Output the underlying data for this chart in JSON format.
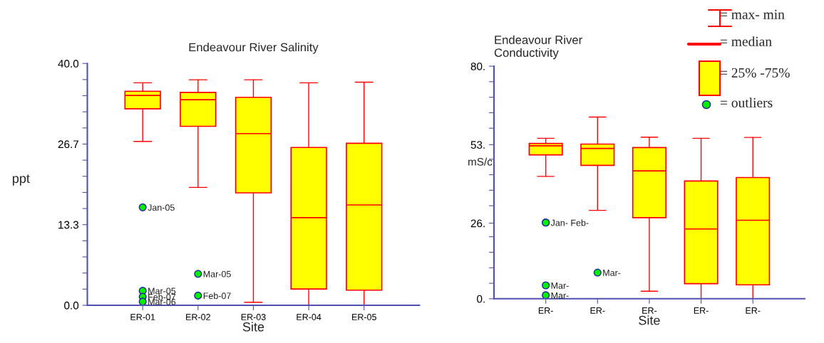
{
  "chart_data": [
    {
      "type": "box",
      "title": "Endeavour River Salinity",
      "xlabel": "Site",
      "ylabel": "ppt",
      "categories": [
        "ER-01",
        "ER-02",
        "ER-03",
        "ER-04",
        "ER-05"
      ],
      "boxes": [
        {
          "low": 27.1,
          "q1": 32.5,
          "median": 34.7,
          "q3": 35.4,
          "high": 36.8,
          "outliers": [
            16.2,
            2.4,
            1.4,
            0.6
          ]
        },
        {
          "low": 19.5,
          "q1": 29.6,
          "median": 34.0,
          "q3": 35.2,
          "high": 37.3,
          "outliers": [
            5.2,
            1.6
          ]
        },
        {
          "low": 0.5,
          "q1": 18.6,
          "median": 28.4,
          "q3": 34.4,
          "high": 37.3
        },
        {
          "low": 0,
          "q1": 2.7,
          "median": 14.5,
          "q3": 26.1,
          "high": 36.8
        },
        {
          "low": 0,
          "q1": 2.5,
          "median": 16.6,
          "q3": 26.8,
          "high": 36.9
        }
      ],
      "ylim": [
        0,
        40
      ],
      "yticks": [
        {
          "value": 0,
          "label": "0.0"
        },
        {
          "value": 2.667,
          "label": null
        },
        {
          "value": 5.333,
          "label": null
        },
        {
          "value": 8,
          "label": null
        },
        {
          "value": 10.667,
          "label": null
        },
        {
          "value": 13.333,
          "label": "13.3"
        },
        {
          "value": 16,
          "label": null
        },
        {
          "value": 18.667,
          "label": null
        },
        {
          "value": 21.333,
          "label": null
        },
        {
          "value": 24,
          "label": null
        },
        {
          "value": 26.667,
          "label": "26.7"
        },
        {
          "value": 29.333,
          "label": null
        },
        {
          "value": 32,
          "label": null
        },
        {
          "value": 34.667,
          "label": null
        },
        {
          "value": 37.333,
          "label": null
        },
        {
          "value": 40,
          "label": "40.0"
        }
      ],
      "annotations": [
        "Jan-05",
        "Mar-05",
        "Feb-07",
        "Mar-06",
        "Mar-05",
        "Feb-07"
      ]
    },
    {
      "type": "box",
      "title": "Endeavour River\nConductivity",
      "xlabel": "Site",
      "ylabel": "mS/c",
      "categories": [
        "ER-",
        "ER-",
        "ER-",
        "ER-",
        "ER-"
      ],
      "boxes": [
        {
          "low": 42.1,
          "q1": 49.5,
          "median": 52.6,
          "q3": 53.4,
          "high": 55.2,
          "outliers": [
            26.2,
            26.2,
            4.6,
            1.2
          ]
        },
        {
          "low": 30.4,
          "q1": 45.9,
          "median": 51.7,
          "q3": 53.2,
          "high": 62.5,
          "outliers": [
            9.0
          ]
        },
        {
          "low": 2.6,
          "q1": 27.9,
          "median": 44.0,
          "q3": 52.0,
          "high": 55.6
        },
        {
          "low": 0,
          "q1": 5.2,
          "median": 24.0,
          "q3": 40.5,
          "high": 55.2
        },
        {
          "low": 0,
          "q1": 4.8,
          "median": 27.0,
          "q3": 41.7,
          "high": 55.5
        }
      ],
      "ylim": [
        0,
        80
      ],
      "yticks": [
        {
          "value": 0,
          "label": "0."
        },
        {
          "value": 5.333,
          "label": null
        },
        {
          "value": 10.667,
          "label": null
        },
        {
          "value": 16,
          "label": null
        },
        {
          "value": 21.333,
          "label": null
        },
        {
          "value": 26,
          "label": "26."
        },
        {
          "value": 32,
          "label": null
        },
        {
          "value": 37.333,
          "label": null
        },
        {
          "value": 42.667,
          "label": null
        },
        {
          "value": 48,
          "label": null
        },
        {
          "value": 53,
          "label": "53."
        },
        {
          "value": 58.667,
          "label": null
        },
        {
          "value": 64,
          "label": null
        },
        {
          "value": 69.333,
          "label": null
        },
        {
          "value": 74.667,
          "label": null
        },
        {
          "value": 80,
          "label": "80."
        }
      ],
      "annotations": [
        "Jan-",
        "Feb-",
        "Mar-",
        "Mar-",
        "Mar-",
        "= max- min",
        "= median",
        "= 25% -75%",
        "= outliers"
      ]
    }
  ]
}
